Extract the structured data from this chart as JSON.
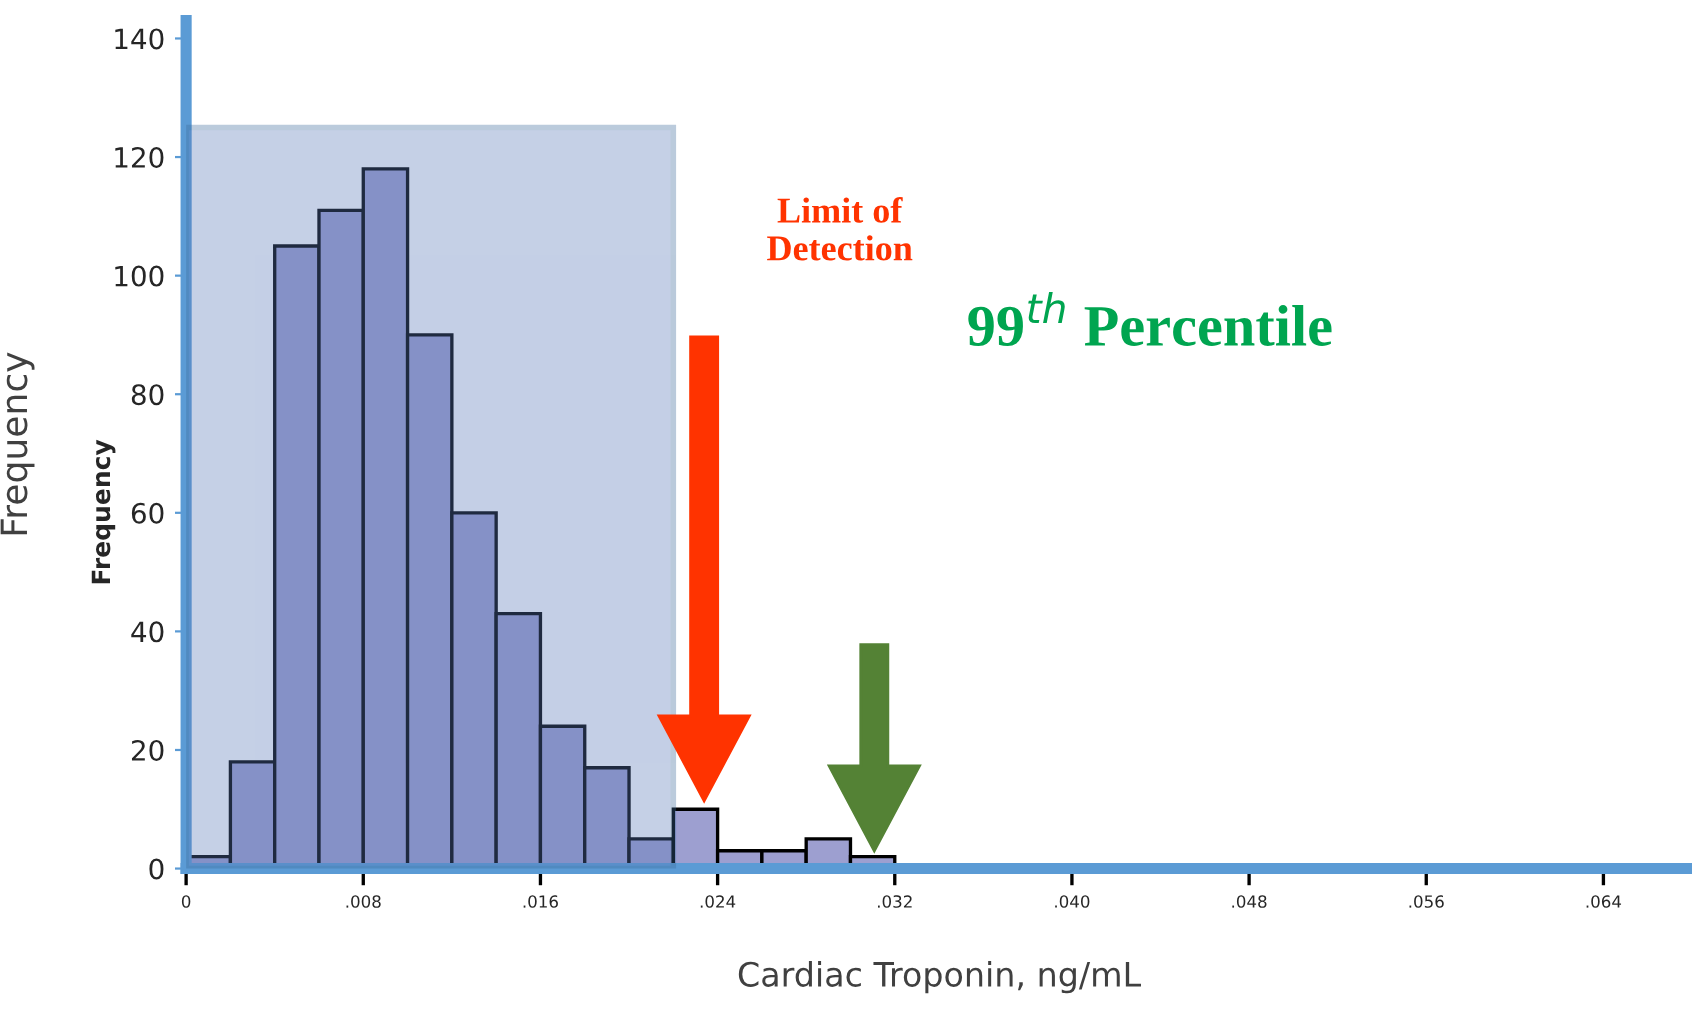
{
  "chart_data": {
    "type": "histogram",
    "xlabel": "Cardiac Troponin, ng/mL",
    "ylabel": "Frequency",
    "bins": [
      0,
      0.002,
      0.004,
      0.006,
      0.008,
      0.01,
      0.012,
      0.014,
      0.016,
      0.018,
      0.02,
      0.022,
      0.024,
      0.026,
      0.028,
      0.03,
      0.032,
      0.034,
      0.036,
      0.038,
      0.04,
      0.042,
      0.044,
      0.046,
      0.048,
      0.05,
      0.052,
      0.054,
      0.056,
      0.058,
      0.06,
      0.062,
      0.064
    ],
    "values": [
      2,
      18,
      105,
      111,
      118,
      90,
      60,
      43,
      24,
      17,
      5,
      10,
      3,
      3,
      5,
      2,
      0.5,
      0,
      0.5,
      0,
      0,
      0,
      0,
      0,
      0,
      0,
      0,
      0,
      0,
      0,
      0,
      0.5
    ],
    "color": "#9d9fd0",
    "xlim": [
      0,
      0.068
    ],
    "xticks": [
      {
        "value": 0,
        "label": "0"
      },
      {
        "value": 0.008,
        "label": ".008"
      },
      {
        "value": 0.016,
        "label": ".016"
      },
      {
        "value": 0.024,
        "label": ".024"
      },
      {
        "value": 0.032,
        "label": ".032"
      },
      {
        "value": 0.04,
        "label": ".040"
      },
      {
        "value": 0.048,
        "label": ".048"
      },
      {
        "value": 0.056,
        "label": ".056"
      },
      {
        "value": 0.064,
        "label": ".064"
      }
    ],
    "ylim": [
      0,
      143
    ],
    "yticks": [
      0,
      20,
      40,
      60,
      80,
      100,
      120,
      140
    ],
    "grid": false,
    "annotations": [
      "Limit of\nDetection",
      "99$^{th}$ Percentile",
      "Frequency"
    ]
  }
}
